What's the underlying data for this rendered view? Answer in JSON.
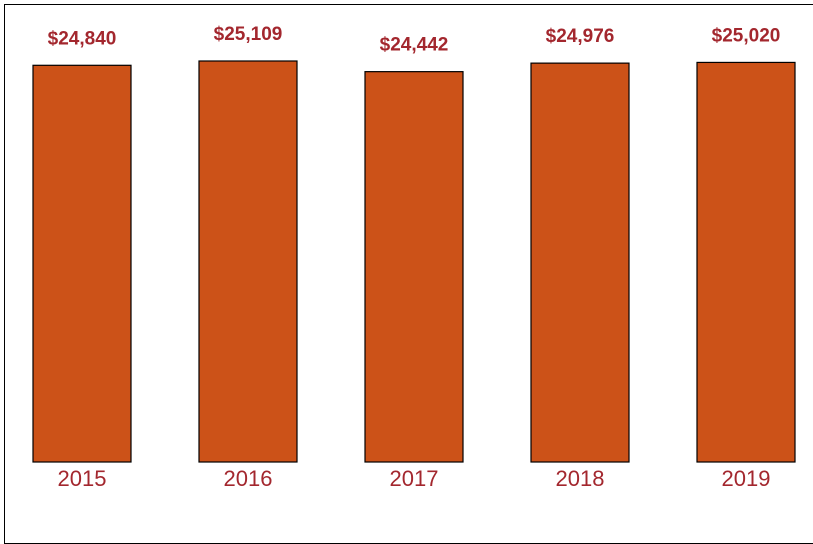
{
  "chart_data": {
    "type": "bar",
    "title": "",
    "xlabel": "",
    "ylabel": "",
    "categories": [
      "2015",
      "2016",
      "2017",
      "2018",
      "2019"
    ],
    "values": [
      24840,
      25109,
      24442,
      24976,
      25020
    ],
    "value_labels": [
      "$24,840",
      "$25,109",
      "$24,442",
      "$24,976",
      "$25,020"
    ],
    "ylim": [
      0,
      25109
    ],
    "grid": false,
    "legend": "none",
    "colors": {
      "bar_fill": "#CC5218",
      "bar_stroke": "#000000",
      "value_label": "#A3272E",
      "tick_label": "#A3272E"
    }
  }
}
